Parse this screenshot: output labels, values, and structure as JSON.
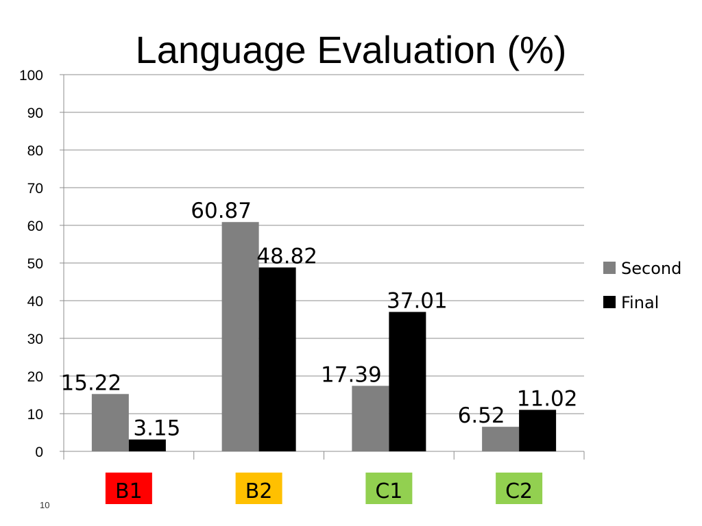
{
  "slide": {
    "number": "10"
  },
  "chart_data": {
    "type": "bar",
    "title": "Language Evaluation (%)",
    "categories": [
      "B1",
      "B2",
      "C1",
      "C2"
    ],
    "category_colors": [
      "#ff0000",
      "#ffc000",
      "#92d050",
      "#92d050"
    ],
    "series": [
      {
        "name": "Second",
        "color": "#808080",
        "values": [
          15.22,
          60.87,
          17.39,
          6.52
        ]
      },
      {
        "name": "Final",
        "color": "#000000",
        "values": [
          3.15,
          48.82,
          37.01,
          11.02
        ]
      }
    ],
    "ylim": [
      0,
      100
    ],
    "yticks": [
      "0",
      "10",
      "20",
      "30",
      "40",
      "50",
      "60",
      "70",
      "80",
      "90",
      "100"
    ],
    "grid": true,
    "legend_position": "right"
  }
}
